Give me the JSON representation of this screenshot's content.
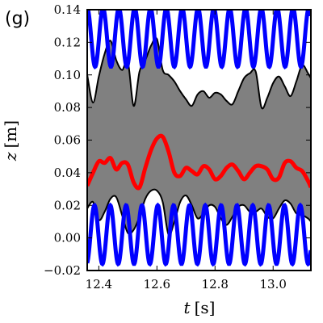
{
  "panel_label": "(g)",
  "colors": {
    "band_fill": "#808080",
    "envelope": "#000000",
    "blue": "#0000ff",
    "red": "#ff0000"
  },
  "chart_data": {
    "type": "line",
    "title": "",
    "xlabel_var": "t",
    "xlabel_unit": "[s]",
    "ylabel_var": "z",
    "ylabel_unit": "[m]",
    "xlim": [
      12.36,
      13.13
    ],
    "ylim": [
      -0.02,
      0.14
    ],
    "xticks": [
      12.4,
      12.6,
      12.8,
      13.0
    ],
    "xtick_labels": [
      "12.4",
      "12.6",
      "12.8",
      "13.0"
    ],
    "yticks": [
      -0.02,
      0.0,
      0.02,
      0.04,
      0.06,
      0.08,
      0.1,
      0.12,
      0.14
    ],
    "ytick_labels": [
      "−0.02",
      "0.00",
      "0.02",
      "0.04",
      "0.06",
      "0.08",
      "0.10",
      "0.12",
      "0.14"
    ],
    "grid": false,
    "legend": "none",
    "series": [
      {
        "role": "upper_envelope",
        "color": "#000000",
        "x": [
          12.36,
          12.38,
          12.4,
          12.42,
          12.44,
          12.46,
          12.48,
          12.5,
          12.52,
          12.54,
          12.56,
          12.58,
          12.6,
          12.62,
          12.64,
          12.66,
          12.68,
          12.7,
          12.72,
          12.74,
          12.76,
          12.78,
          12.8,
          12.82,
          12.84,
          12.86,
          12.88,
          12.9,
          12.92,
          12.94,
          12.96,
          12.98,
          13.0,
          13.02,
          13.04,
          13.06,
          13.08,
          13.1,
          13.12,
          13.13
        ],
        "y": [
          0.1,
          0.083,
          0.099,
          0.113,
          0.121,
          0.109,
          0.103,
          0.108,
          0.081,
          0.102,
          0.109,
          0.118,
          0.122,
          0.103,
          0.1,
          0.096,
          0.09,
          0.085,
          0.081,
          0.088,
          0.09,
          0.086,
          0.089,
          0.088,
          0.084,
          0.082,
          0.09,
          0.098,
          0.101,
          0.102,
          0.08,
          0.086,
          0.095,
          0.099,
          0.093,
          0.087,
          0.096,
          0.106,
          0.101,
          0.098
        ]
      },
      {
        "role": "lower_envelope",
        "color": "#000000",
        "x": [
          12.36,
          12.38,
          12.4,
          12.42,
          12.44,
          12.46,
          12.48,
          12.5,
          12.52,
          12.54,
          12.56,
          12.58,
          12.6,
          12.62,
          12.64,
          12.66,
          12.68,
          12.7,
          12.72,
          12.74,
          12.76,
          12.78,
          12.8,
          12.82,
          12.84,
          12.86,
          12.88,
          12.9,
          12.92,
          12.94,
          12.96,
          12.98,
          13.0,
          13.02,
          13.04,
          13.06,
          13.08,
          13.1,
          13.12,
          13.13
        ],
        "y": [
          0.018,
          0.022,
          0.011,
          0.016,
          0.024,
          0.025,
          0.014,
          0.003,
          0.005,
          0.013,
          0.024,
          0.029,
          0.029,
          0.022,
          0.002,
          0.01,
          0.022,
          0.026,
          0.02,
          0.012,
          0.015,
          0.02,
          0.019,
          0.012,
          0.008,
          0.013,
          0.019,
          0.02,
          0.016,
          0.016,
          0.018,
          0.013,
          0.012,
          0.018,
          0.023,
          0.021,
          0.015,
          0.014,
          0.012,
          0.01
        ]
      },
      {
        "role": "mean",
        "color": "#ff0000",
        "x": [
          12.36,
          12.38,
          12.4,
          12.42,
          12.44,
          12.46,
          12.48,
          12.5,
          12.52,
          12.54,
          12.56,
          12.58,
          12.6,
          12.62,
          12.64,
          12.66,
          12.68,
          12.7,
          12.72,
          12.74,
          12.76,
          12.78,
          12.8,
          12.82,
          12.84,
          12.86,
          12.88,
          12.9,
          12.92,
          12.94,
          12.96,
          12.98,
          13.0,
          13.02,
          13.04,
          13.06,
          13.08,
          13.1,
          13.12,
          13.13
        ],
        "y": [
          0.032,
          0.04,
          0.047,
          0.046,
          0.049,
          0.042,
          0.046,
          0.045,
          0.034,
          0.031,
          0.043,
          0.054,
          0.061,
          0.062,
          0.053,
          0.04,
          0.038,
          0.043,
          0.041,
          0.039,
          0.044,
          0.042,
          0.036,
          0.038,
          0.043,
          0.045,
          0.041,
          0.036,
          0.04,
          0.044,
          0.044,
          0.042,
          0.036,
          0.037,
          0.046,
          0.047,
          0.043,
          0.041,
          0.035,
          0.031
        ]
      },
      {
        "role": "upper_oscillation",
        "color": "#0000ff",
        "center": 0.123,
        "amplitude": 0.018,
        "period_s": 0.0545,
        "phase_t0": 12.36
      },
      {
        "role": "lower_oscillation",
        "color": "#0000ff",
        "center": 0.002,
        "amplitude": 0.018,
        "period_s": 0.0545,
        "phase_t0": 12.385
      }
    ]
  }
}
